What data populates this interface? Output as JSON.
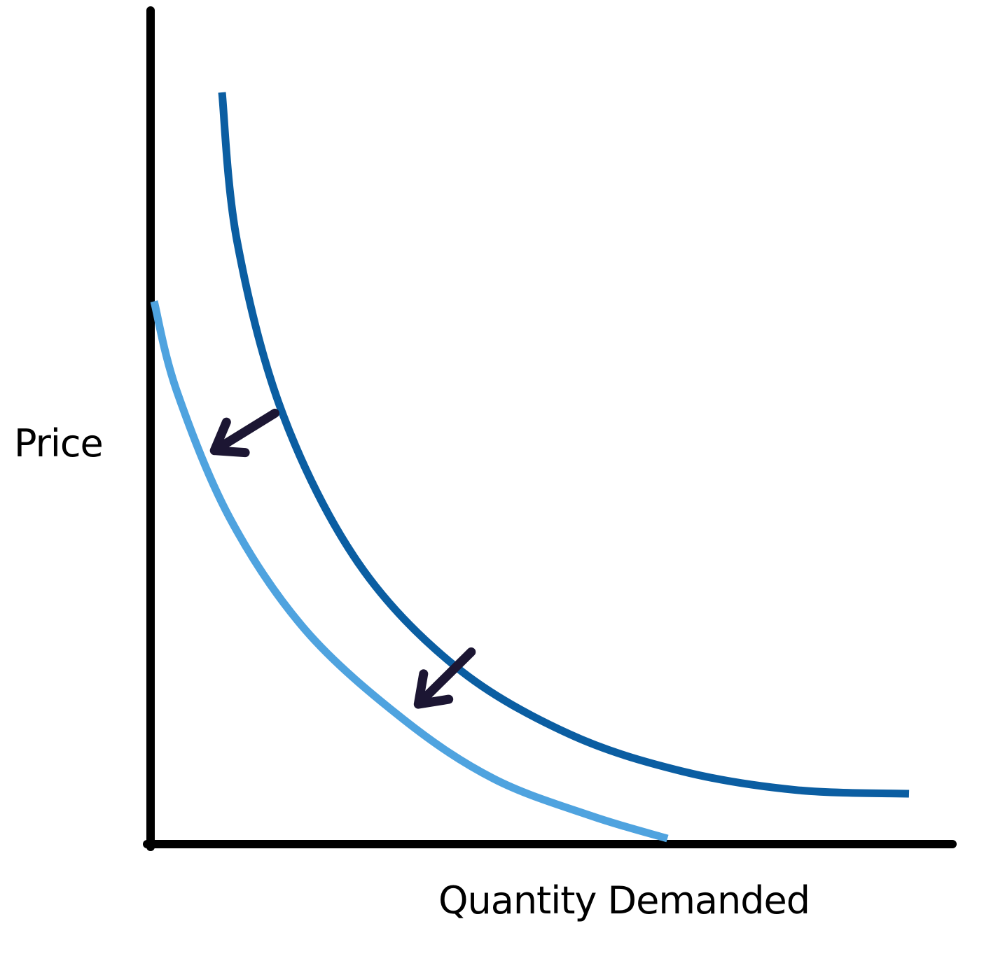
{
  "chart_data": {
    "type": "line",
    "title": "",
    "xlabel": "Quantity Demanded",
    "ylabel": "Price",
    "grid": false,
    "legend": "none",
    "series": [
      {
        "color": "#0b5ea2",
        "points": [
          [
            0.09,
            1.0
          ],
          [
            0.11,
            0.8
          ],
          [
            0.17,
            0.57
          ],
          [
            0.27,
            0.37
          ],
          [
            0.4,
            0.23
          ],
          [
            0.55,
            0.14
          ],
          [
            0.7,
            0.09
          ],
          [
            0.85,
            0.065
          ],
          [
            1.0,
            0.06
          ]
        ]
      },
      {
        "color": "#4fa3df",
        "points": [
          [
            0.0,
            0.72
          ],
          [
            0.03,
            0.6
          ],
          [
            0.1,
            0.43
          ],
          [
            0.2,
            0.28
          ],
          [
            0.33,
            0.16
          ],
          [
            0.45,
            0.08
          ],
          [
            0.58,
            0.03
          ],
          [
            0.68,
            0.0
          ]
        ]
      }
    ],
    "annotations": [
      {
        "type": "arrow",
        "from": [
          0.16,
          0.57
        ],
        "to": [
          0.08,
          0.52
        ]
      },
      {
        "type": "arrow",
        "from": [
          0.42,
          0.25
        ],
        "to": [
          0.35,
          0.18
        ]
      }
    ],
    "colors": {
      "axis": "#000000",
      "arrow": "#1c1633"
    }
  }
}
